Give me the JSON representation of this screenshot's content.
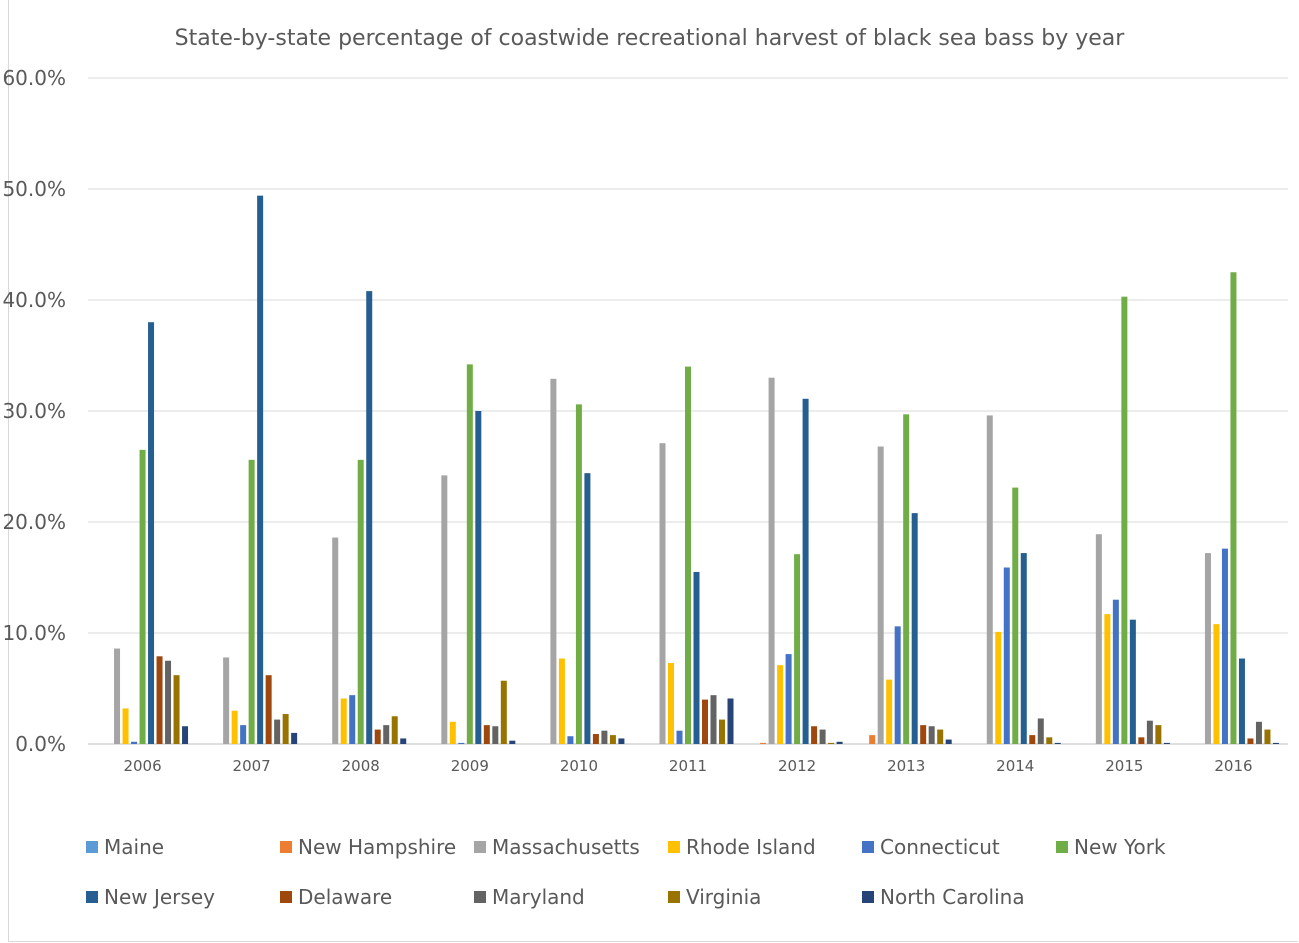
{
  "chart_data": {
    "type": "bar",
    "title": "State-by-state percentage of coastwide recreational harvest of black sea bass by year",
    "xlabel": "",
    "ylabel": "",
    "ylim": [
      0,
      60
    ],
    "yticks": [
      "0.0%",
      "10.0%",
      "20.0%",
      "30.0%",
      "40.0%",
      "50.0%",
      "60.0%"
    ],
    "grid": true,
    "legend_position": "bottom",
    "categories": [
      "2006",
      "2007",
      "2008",
      "2009",
      "2010",
      "2011",
      "2012",
      "2013",
      "2014",
      "2015",
      "2016"
    ],
    "series": [
      {
        "name": "Maine",
        "color": "#5b9bd5",
        "values": [
          0,
          0,
          0,
          0,
          0,
          0,
          0,
          0,
          0,
          0,
          0
        ]
      },
      {
        "name": "New Hampshire",
        "color": "#ed7d31",
        "values": [
          0,
          0,
          0,
          0,
          0,
          0,
          0.1,
          0.8,
          0,
          0,
          0
        ]
      },
      {
        "name": "Massachusetts",
        "color": "#a5a5a5",
        "values": [
          8.6,
          7.8,
          18.6,
          24.2,
          32.9,
          27.1,
          33.0,
          26.8,
          29.6,
          18.9,
          17.2
        ]
      },
      {
        "name": "Rhode Island",
        "color": "#ffc000",
        "values": [
          3.2,
          3.0,
          4.1,
          2.0,
          7.7,
          7.3,
          7.1,
          5.8,
          10.1,
          11.7,
          10.8
        ]
      },
      {
        "name": "Connecticut",
        "color": "#4472c4",
        "values": [
          0.2,
          1.7,
          4.4,
          0.1,
          0.7,
          1.2,
          8.1,
          10.6,
          15.9,
          13.0,
          17.6
        ]
      },
      {
        "name": "New York",
        "color": "#70ad47",
        "values": [
          26.5,
          25.6,
          25.6,
          34.2,
          30.6,
          34.0,
          17.1,
          29.7,
          23.1,
          40.3,
          42.5
        ]
      },
      {
        "name": "New Jersey",
        "color": "#255e91",
        "values": [
          38.0,
          49.4,
          40.8,
          30.0,
          24.4,
          15.5,
          31.1,
          20.8,
          17.2,
          11.2,
          7.7
        ]
      },
      {
        "name": "Delaware",
        "color": "#9e480e",
        "values": [
          7.9,
          6.2,
          1.3,
          1.7,
          0.9,
          4.0,
          1.6,
          1.7,
          0.8,
          0.6,
          0.5
        ]
      },
      {
        "name": "Maryland",
        "color": "#636363",
        "values": [
          7.5,
          2.2,
          1.7,
          1.6,
          1.2,
          4.4,
          1.3,
          1.6,
          2.3,
          2.1,
          2.0
        ]
      },
      {
        "name": "Virginia",
        "color": "#997300",
        "values": [
          6.2,
          2.7,
          2.5,
          5.7,
          0.8,
          2.2,
          0.1,
          1.3,
          0.6,
          1.7,
          1.3
        ]
      },
      {
        "name": "North Carolina",
        "color": "#264478",
        "values": [
          1.6,
          1.0,
          0.5,
          0.3,
          0.5,
          4.1,
          0.2,
          0.4,
          0.1,
          0.1,
          0.1
        ]
      }
    ]
  }
}
